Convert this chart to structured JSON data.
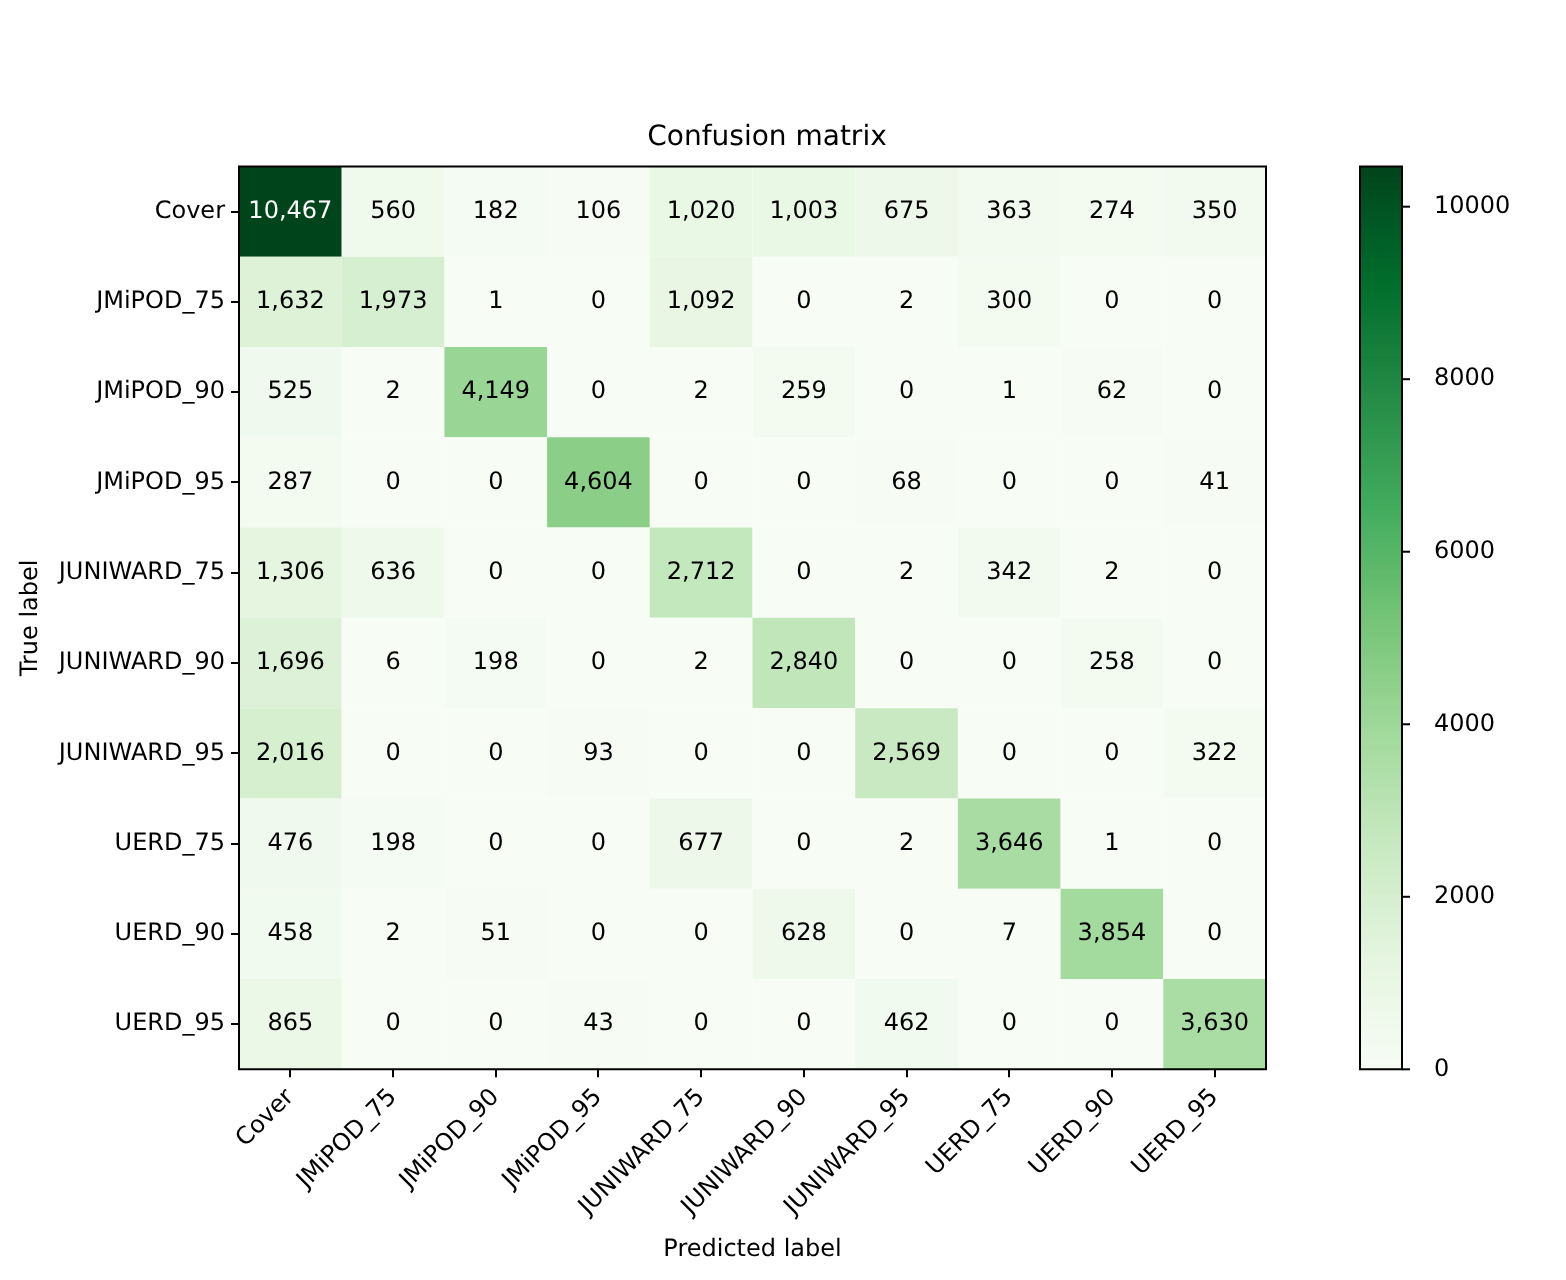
{
  "chart_data": {
    "type": "heatmap",
    "title": "Confusion matrix",
    "xlabel": "Predicted label",
    "ylabel": "True label",
    "categories": [
      "Cover",
      "JMiPOD_75",
      "JMiPOD_90",
      "JMiPOD_95",
      "JUNIWARD_75",
      "JUNIWARD_90",
      "JUNIWARD_95",
      "UERD_75",
      "UERD_90",
      "UERD_95"
    ],
    "y_categories": [
      "Cover",
      "JMiPOD_75",
      "JMiPOD_90",
      "JMiPOD_95",
      "JUNIWARD_75",
      "JUNIWARD_90",
      "JUNIWARD_95",
      "UERD_75",
      "UERD_90",
      "UERD_95"
    ],
    "cells": [
      [
        10467,
        560,
        182,
        106,
        1020,
        1003,
        675,
        363,
        274,
        350
      ],
      [
        1632,
        1973,
        1,
        0,
        1092,
        0,
        2,
        300,
        0,
        0
      ],
      [
        525,
        2,
        4149,
        0,
        2,
        259,
        0,
        1,
        62,
        0
      ],
      [
        287,
        0,
        0,
        4604,
        0,
        0,
        68,
        0,
        0,
        41
      ],
      [
        1306,
        636,
        0,
        0,
        2712,
        0,
        2,
        342,
        2,
        0
      ],
      [
        1696,
        6,
        198,
        0,
        2,
        2840,
        0,
        0,
        258,
        0
      ],
      [
        2016,
        0,
        0,
        93,
        0,
        0,
        2569,
        0,
        0,
        322
      ],
      [
        476,
        198,
        0,
        0,
        677,
        0,
        2,
        3646,
        1,
        0
      ],
      [
        458,
        2,
        51,
        0,
        0,
        628,
        0,
        7,
        3854,
        0
      ],
      [
        865,
        0,
        0,
        43,
        0,
        0,
        462,
        0,
        0,
        3630
      ]
    ],
    "cell_labels": [
      [
        "10,467",
        "560",
        "182",
        "106",
        "1,020",
        "1,003",
        "675",
        "363",
        "274",
        "350"
      ],
      [
        "1,632",
        "1,973",
        "1",
        "0",
        "1,092",
        "0",
        "2",
        "300",
        "0",
        "0"
      ],
      [
        "525",
        "2",
        "4,149",
        "0",
        "2",
        "259",
        "0",
        "1",
        "62",
        "0"
      ],
      [
        "287",
        "0",
        "0",
        "4,604",
        "0",
        "0",
        "68",
        "0",
        "0",
        "41"
      ],
      [
        "1,306",
        "636",
        "0",
        "0",
        "2,712",
        "0",
        "2",
        "342",
        "2",
        "0"
      ],
      [
        "1,696",
        "6",
        "198",
        "0",
        "2",
        "2,840",
        "0",
        "0",
        "258",
        "0"
      ],
      [
        "2,016",
        "0",
        "0",
        "93",
        "0",
        "0",
        "2,569",
        "0",
        "0",
        "322"
      ],
      [
        "476",
        "198",
        "0",
        "0",
        "677",
        "0",
        "2",
        "3,646",
        "1",
        "0"
      ],
      [
        "458",
        "2",
        "51",
        "0",
        "0",
        "628",
        "0",
        "7",
        "3,854",
        "0"
      ],
      [
        "865",
        "0",
        "0",
        "43",
        "0",
        "0",
        "462",
        "0",
        "0",
        "3,630"
      ]
    ],
    "clim": [
      0,
      10467
    ],
    "cticks": [
      0,
      2000,
      4000,
      6000,
      8000,
      10000
    ]
  }
}
